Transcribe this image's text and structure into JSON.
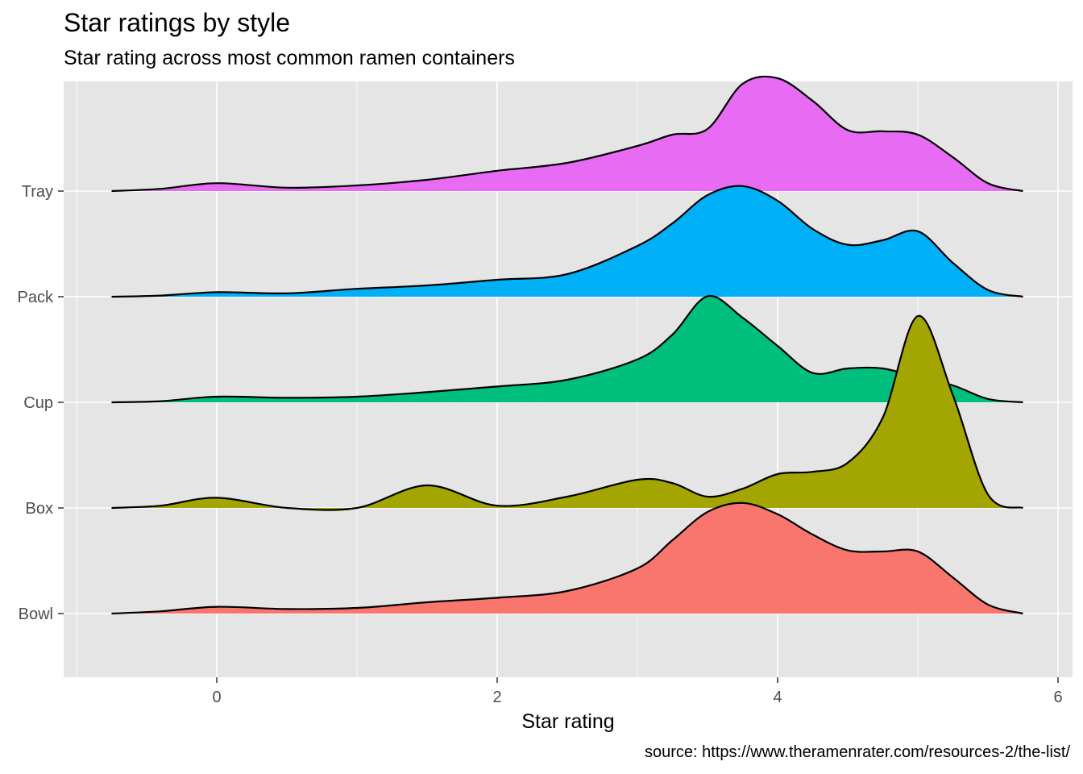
{
  "chart_data": {
    "type": "ridgeline",
    "title": "Star ratings by style",
    "subtitle": "Star rating across most common ramen containers",
    "xlabel": "Star rating",
    "ylabel": "",
    "caption": "source: https://www.theramenrater.com/resources-2/the-list/",
    "xlim": [
      -1.0,
      6.0
    ],
    "x_ticks": [
      "0",
      "2",
      "4",
      "6"
    ],
    "grid": true,
    "legend": "none",
    "categories": [
      "Bowl",
      "Box",
      "Cup",
      "Pack",
      "Tray"
    ],
    "x": [
      -0.75,
      -0.4,
      0.0,
      0.5,
      1.0,
      1.5,
      2.0,
      2.5,
      3.0,
      3.25,
      3.5,
      3.75,
      4.0,
      4.25,
      4.5,
      4.75,
      5.0,
      5.25,
      5.5,
      5.75
    ],
    "series": [
      {
        "name": "Bowl",
        "color": "#F8766D",
        "values": [
          0.0,
          0.02,
          0.06,
          0.04,
          0.05,
          0.1,
          0.14,
          0.2,
          0.4,
          0.65,
          0.9,
          0.98,
          0.88,
          0.7,
          0.56,
          0.55,
          0.55,
          0.32,
          0.08,
          0.0
        ]
      },
      {
        "name": "Box",
        "color": "#A3A500",
        "values": [
          0.0,
          0.02,
          0.09,
          0.0,
          0.0,
          0.2,
          0.02,
          0.1,
          0.25,
          0.22,
          0.1,
          0.17,
          0.3,
          0.32,
          0.4,
          0.8,
          1.7,
          1.0,
          0.12,
          0.0
        ]
      },
      {
        "name": "Cup",
        "color": "#00BF7D",
        "values": [
          0.0,
          0.01,
          0.05,
          0.04,
          0.05,
          0.09,
          0.14,
          0.2,
          0.38,
          0.6,
          0.94,
          0.75,
          0.5,
          0.26,
          0.3,
          0.3,
          0.22,
          0.15,
          0.03,
          0.0
        ]
      },
      {
        "name": "Pack",
        "color": "#00B0F6",
        "values": [
          0.0,
          0.01,
          0.04,
          0.03,
          0.07,
          0.1,
          0.15,
          0.2,
          0.45,
          0.65,
          0.9,
          0.98,
          0.85,
          0.6,
          0.46,
          0.5,
          0.58,
          0.3,
          0.06,
          0.0
        ]
      },
      {
        "name": "Tray",
        "color": "#E76BF3",
        "values": [
          0.0,
          0.02,
          0.07,
          0.03,
          0.05,
          0.1,
          0.18,
          0.25,
          0.4,
          0.5,
          0.55,
          0.95,
          1.0,
          0.8,
          0.54,
          0.53,
          0.5,
          0.3,
          0.07,
          0.0
        ]
      }
    ]
  }
}
